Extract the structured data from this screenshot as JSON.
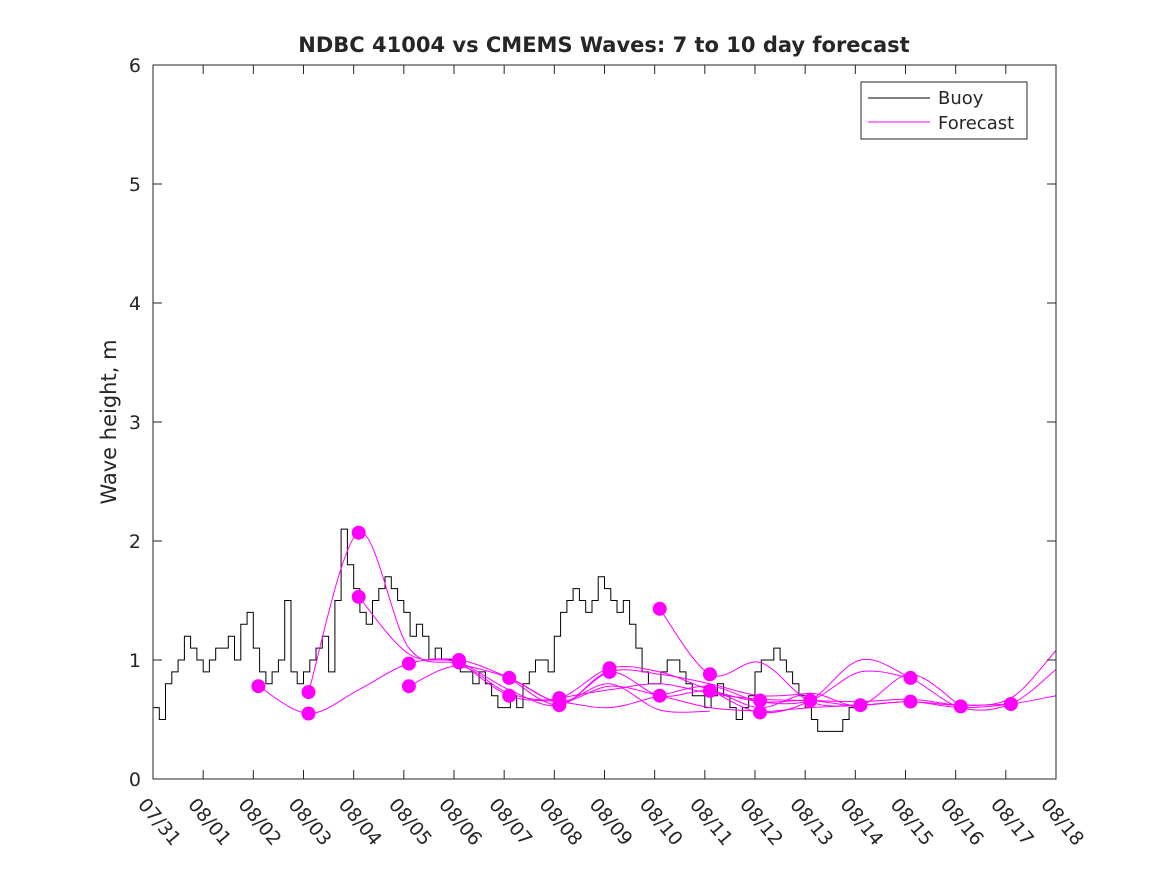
{
  "chart_data": {
    "type": "line",
    "title": "NDBC 41004 vs CMEMS Waves: 7 to 10 day forecast",
    "xlabel": "",
    "ylabel": "Wave height, m",
    "xlim": [
      0,
      18
    ],
    "ylim": [
      0,
      6
    ],
    "yticks": [
      0,
      1,
      2,
      3,
      4,
      5,
      6
    ],
    "xtick_labels": [
      "07/31",
      "08/01",
      "08/02",
      "08/03",
      "08/04",
      "08/05",
      "08/06",
      "08/07",
      "08/08",
      "08/09",
      "08/10",
      "08/11",
      "08/12",
      "08/13",
      "08/14",
      "08/15",
      "08/16",
      "08/17",
      "08/18"
    ],
    "grid": false,
    "legend": {
      "location": "top-right",
      "entries": [
        "Buoy",
        "Forecast"
      ]
    },
    "colors": {
      "buoy": "#000000",
      "forecast": "#ff00ff",
      "axis": "#262626"
    },
    "series": [
      {
        "name": "Buoy",
        "step_hours": 3,
        "x_start": 0,
        "values": [
          0.6,
          0.5,
          0.8,
          0.9,
          1.0,
          1.2,
          1.1,
          1.0,
          0.9,
          1.0,
          1.1,
          1.1,
          1.2,
          1.0,
          1.3,
          1.4,
          1.1,
          0.9,
          0.8,
          0.9,
          1.0,
          1.5,
          0.9,
          0.8,
          0.9,
          1.0,
          1.1,
          1.2,
          0.9,
          1.5,
          2.1,
          1.8,
          1.6,
          1.4,
          1.3,
          1.5,
          1.6,
          1.7,
          1.6,
          1.5,
          1.4,
          1.2,
          1.3,
          1.2,
          1.0,
          1.1,
          1.0,
          1.0,
          1.0,
          0.9,
          0.9,
          0.8,
          0.9,
          0.8,
          0.7,
          0.6,
          0.6,
          0.7,
          0.6,
          0.8,
          0.9,
          1.0,
          1.0,
          0.9,
          1.2,
          1.4,
          1.5,
          1.6,
          1.5,
          1.4,
          1.5,
          1.7,
          1.6,
          1.5,
          1.4,
          1.5,
          1.3,
          1.1,
          0.9,
          0.8,
          0.8,
          0.9,
          1.0,
          1.0,
          0.9,
          0.8,
          0.7,
          0.7,
          0.6,
          0.7,
          0.8,
          0.7,
          0.6,
          0.5,
          0.6,
          0.7,
          0.9,
          1.0,
          1.0,
          1.1,
          1.0,
          0.9,
          0.8,
          0.7,
          0.6,
          0.5,
          0.4,
          0.4,
          0.4,
          0.4,
          0.5,
          0.6,
          0.6
        ]
      },
      {
        "name": "Forecast",
        "x": [
          2.1,
          3.1,
          4.1,
          5.1,
          6.1,
          7.1,
          8.1,
          9.1,
          10.1,
          11.1
        ],
        "values": [
          0.78,
          0.55,
          0.75,
          0.97,
          1.0,
          0.85,
          0.65,
          0.8,
          0.58,
          0.57
        ]
      },
      {
        "name": "Forecast",
        "x": [
          3.1,
          4.1,
          5.1,
          6.1,
          7.1,
          8.1,
          9.1,
          10.1,
          11.1,
          12.1
        ],
        "values": [
          0.73,
          2.07,
          1.1,
          0.97,
          0.85,
          0.65,
          0.78,
          0.7,
          0.6,
          0.57
        ]
      },
      {
        "name": "Forecast",
        "x": [
          4.1,
          5.1,
          6.1,
          7.1,
          8.1,
          9.1,
          10.1,
          11.1,
          12.1,
          13.1
        ],
        "values": [
          1.53,
          1.05,
          0.98,
          0.75,
          0.62,
          0.9,
          0.88,
          0.8,
          0.7,
          0.72
        ]
      },
      {
        "name": "Forecast",
        "x": [
          5.1,
          6.1,
          7.1,
          8.1,
          9.1,
          10.1,
          11.1,
          12.1,
          13.1,
          14.1
        ],
        "values": [
          0.78,
          0.95,
          0.72,
          0.68,
          0.93,
          0.9,
          0.75,
          0.65,
          0.66,
          0.6
        ]
      },
      {
        "name": "Forecast",
        "x": [
          6.1,
          7.1,
          8.1,
          9.1,
          10.1,
          11.1,
          12.1,
          13.1,
          14.1,
          15.1
        ],
        "values": [
          0.99,
          0.7,
          0.65,
          0.6,
          0.7,
          0.78,
          0.65,
          0.66,
          0.9,
          0.85
        ]
      },
      {
        "name": "Forecast",
        "x": [
          7.1,
          8.1,
          9.1,
          10.1,
          11.1,
          12.1,
          13.1,
          14.1,
          15.1,
          16.1
        ],
        "values": [
          0.85,
          0.62,
          0.9,
          0.7,
          0.74,
          0.6,
          0.72,
          0.62,
          0.88,
          0.61
        ]
      },
      {
        "name": "Forecast",
        "x": [
          8.1,
          9.1,
          10.1,
          11.1,
          12.1,
          13.1,
          14.1,
          15.1,
          16.1,
          17.1
        ],
        "values": [
          0.68,
          0.75,
          0.8,
          0.72,
          0.67,
          0.66,
          0.65,
          0.67,
          0.62,
          0.63
        ]
      },
      {
        "name": "Forecast",
        "x": [
          10.1,
          11.1,
          12.1,
          13.1,
          14.1,
          15.1,
          16.1,
          17.1,
          18.0
        ],
        "values": [
          1.43,
          0.88,
          0.98,
          0.65,
          0.62,
          0.65,
          0.6,
          0.63,
          0.7
        ]
      },
      {
        "name": "Forecast",
        "x": [
          11.1,
          12.1,
          13.1,
          14.1,
          15.1,
          16.1,
          17.1,
          18.0
        ],
        "values": [
          0.75,
          0.56,
          0.66,
          1.0,
          0.85,
          0.6,
          0.63,
          0.92
        ]
      },
      {
        "name": "Forecast",
        "x": [
          12.1,
          13.1,
          14.1,
          15.1,
          16.1,
          17.1,
          18.0
        ],
        "values": [
          0.56,
          0.6,
          0.62,
          0.65,
          0.62,
          0.68,
          1.08
        ]
      }
    ],
    "forecast_init_markers": {
      "x": [
        2.1,
        3.1,
        3.1,
        4.1,
        4.1,
        5.1,
        5.1,
        6.1,
        6.1,
        7.1,
        7.1,
        8.1,
        8.1,
        9.1,
        9.1,
        10.1,
        10.1,
        11.1,
        11.1,
        12.1,
        12.1,
        13.1,
        14.1,
        15.1,
        15.1,
        16.1,
        17.1
      ],
      "values": [
        0.78,
        0.73,
        0.55,
        2.07,
        1.53,
        0.97,
        0.78,
        1.0,
        0.98,
        0.85,
        0.7,
        0.68,
        0.62,
        0.93,
        0.9,
        1.43,
        0.7,
        0.88,
        0.74,
        0.66,
        0.56,
        0.66,
        0.62,
        0.85,
        0.65,
        0.61,
        0.63
      ]
    }
  }
}
